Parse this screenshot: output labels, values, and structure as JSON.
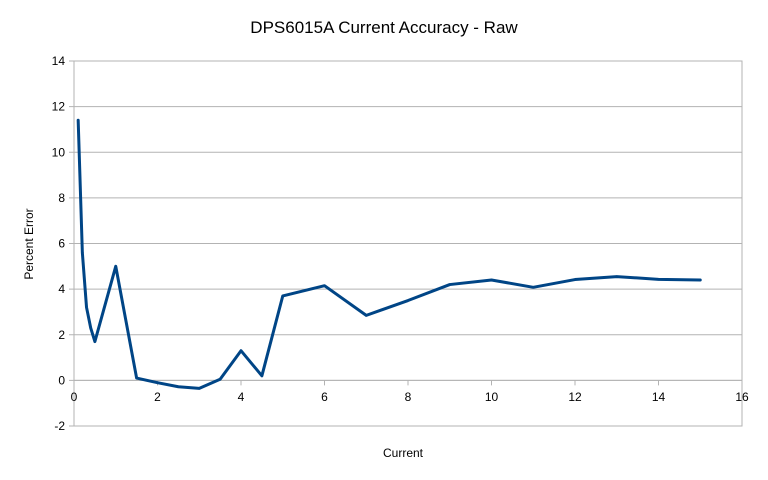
{
  "chart_data": {
    "type": "line",
    "title": "DPS6015A Current Accuracy - Raw",
    "xlabel": "Current",
    "ylabel": "Percent Error",
    "xlim": [
      0,
      16
    ],
    "ylim": [
      -2,
      14
    ],
    "xticks": [
      0,
      2,
      4,
      6,
      8,
      10,
      12,
      14,
      16
    ],
    "yticks": [
      -2,
      0,
      2,
      4,
      6,
      8,
      10,
      12,
      14
    ],
    "grid": true,
    "legend": "none",
    "series": [
      {
        "color": "#004586",
        "x": [
          0.1,
          0.2,
          0.3,
          0.4,
          0.5,
          1,
          1.5,
          2,
          2.5,
          3,
          3.5,
          4,
          4.5,
          5,
          6,
          7,
          8,
          9,
          10,
          11,
          12,
          13,
          14,
          15
        ],
        "y": [
          11.4,
          5.6,
          3.2,
          2.3,
          1.7,
          5.0,
          0.1,
          -0.1,
          -0.28,
          -0.35,
          0.05,
          1.3,
          0.2,
          3.7,
          4.15,
          2.85,
          3.5,
          4.2,
          4.4,
          4.08,
          4.42,
          4.55,
          4.43,
          4.4
        ]
      }
    ]
  }
}
